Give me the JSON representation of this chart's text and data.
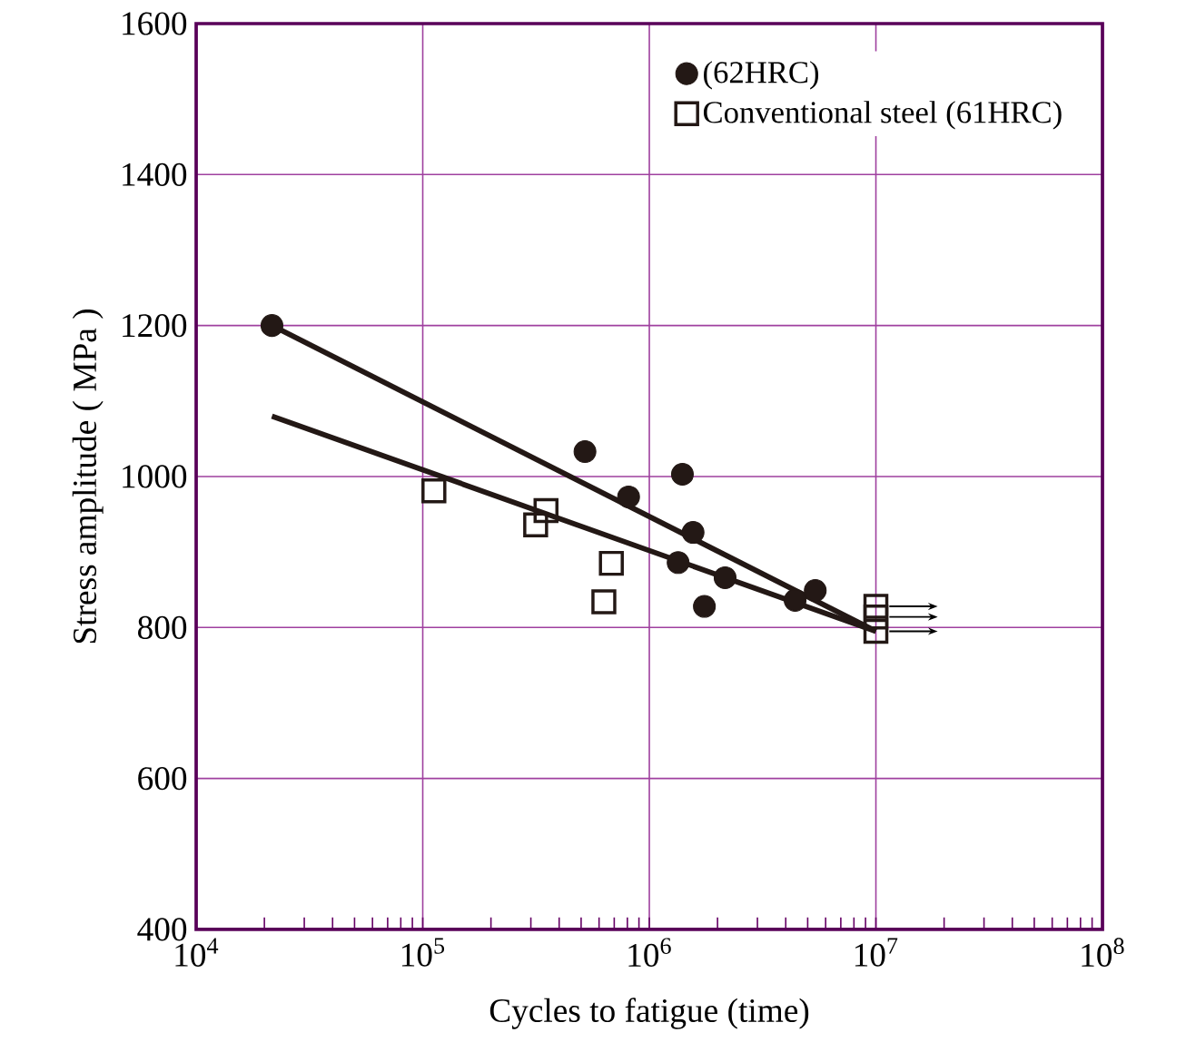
{
  "chart_data": {
    "type": "scatter",
    "xlabel": "Cycles to fatigue (time)",
    "ylabel": "Stress amplitude ( MPa )",
    "log": "x",
    "grid": true,
    "legend": "top right",
    "xlim": [
      10000,
      100000000
    ],
    "ylim": [
      400,
      1600
    ],
    "xticks": [
      {
        "value": 10000,
        "label": "10$^{4}$"
      },
      {
        "value": 100000,
        "label": "10$^{5}$"
      },
      {
        "value": 1000000,
        "label": "10$^{6}$"
      },
      {
        "value": 10000000,
        "label": "10$^{7}$"
      },
      {
        "value": 100000000,
        "label": "10$^{8}$"
      }
    ],
    "yticks": [
      400,
      600,
      800,
      1000,
      1200,
      1400,
      1600
    ],
    "series": [
      {
        "type": "line",
        "color": "#231815",
        "marker": "none",
        "x": [
          21600,
          10000000
        ],
        "values": [
          1200,
          795
        ]
      },
      {
        "type": "line",
        "color": "#231815",
        "marker": "none",
        "x": [
          21600,
          10000000
        ],
        "values": [
          1080,
          795
        ]
      },
      {
        "name": "(62HRC)",
        "color": "#231815",
        "marker": "circle",
        "x": [
          21600,
          520000,
          810000,
          1400000,
          1560000,
          1340000,
          2160000,
          1750000,
          4400000,
          5400000
        ],
        "values": [
          1200,
          1033,
          973,
          1003,
          926,
          886,
          866,
          828,
          836,
          849
        ]
      },
      {
        "name": "Conventional steel (61HRC)",
        "color": "#231815",
        "marker": "square",
        "x": [
          112000,
          350000,
          315000,
          680000,
          630000,
          10000000,
          10000000,
          10000000
        ],
        "values": [
          981,
          955,
          936,
          885,
          834,
          828,
          814,
          795
        ]
      }
    ]
  }
}
